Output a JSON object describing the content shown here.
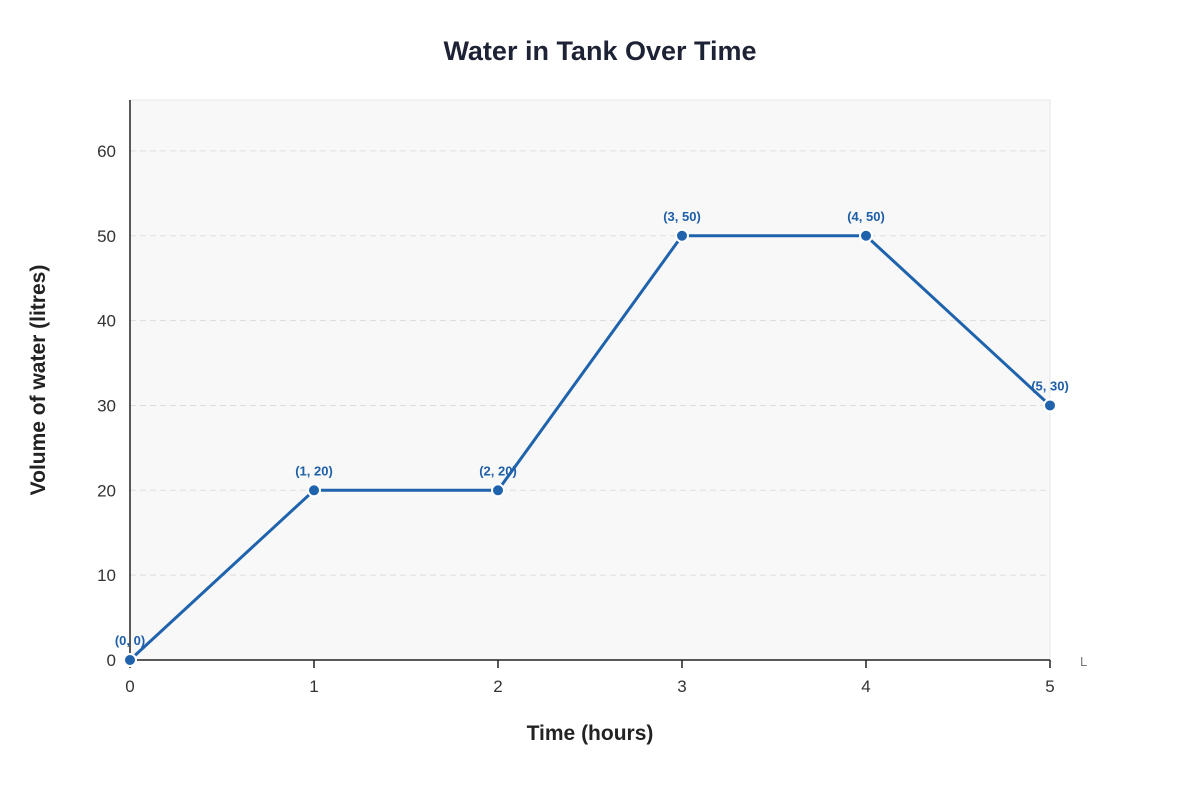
{
  "chart_data": {
    "type": "line",
    "title": "Water in Tank Over Time",
    "xlabel": "Time (hours)",
    "ylabel": "Volume of water (litres)",
    "x": [
      0,
      1,
      2,
      3,
      4,
      5
    ],
    "y": [
      0,
      20,
      20,
      50,
      50,
      30
    ],
    "point_labels": [
      "(0, 0)",
      "(1, 20)",
      "(2, 20)",
      "(3, 50)",
      "(4, 50)",
      "(5, 30)"
    ],
    "xlim": [
      0,
      5
    ],
    "ylim": [
      0,
      66
    ],
    "x_ticks": [
      0,
      1,
      2,
      3,
      4,
      5
    ],
    "y_ticks": [
      0,
      10,
      20,
      30,
      40,
      50,
      60
    ],
    "x_tick_labels": [
      "0",
      "1",
      "2",
      "3",
      "4",
      "5"
    ],
    "y_tick_labels": [
      "0",
      "10",
      "20",
      "30",
      "40",
      "50",
      "60"
    ],
    "axis_end_mark": "L",
    "grid": true,
    "legend": "none",
    "colors": {
      "line": "#1f63ad",
      "point_label": "#1e5fa8",
      "plot_background": "#f8f8f8",
      "grid": "#dddddd"
    }
  }
}
